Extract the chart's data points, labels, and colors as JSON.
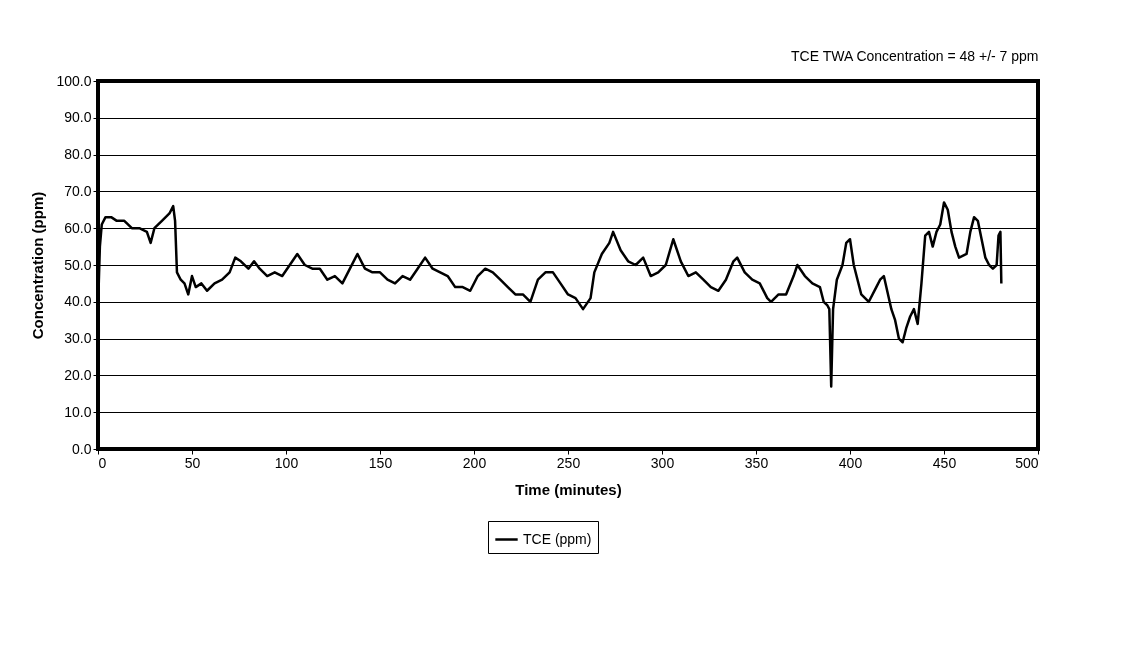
{
  "chart_data": {
    "type": "line",
    "xlabel": "Time (minutes)",
    "ylabel": "Concentration (ppm)",
    "annotations": [
      "TCE TWA Concentration = 48 +/- 7 ppm"
    ],
    "xlim": [
      0,
      500
    ],
    "xticks": [
      0,
      50,
      100,
      150,
      200,
      250,
      300,
      350,
      400,
      450,
      500
    ],
    "ylim": [
      0,
      100
    ],
    "yticks": [
      {
        "value": 0,
        "label": "0.0"
      },
      {
        "value": 10,
        "label": "10.0"
      },
      {
        "value": 20,
        "label": "20.0"
      },
      {
        "value": 30,
        "label": "30.0"
      },
      {
        "value": 40,
        "label": "40.0"
      },
      {
        "value": 50,
        "label": "50.0"
      },
      {
        "value": 60,
        "label": "60.0"
      },
      {
        "value": 70,
        "label": "70.0"
      },
      {
        "value": 80,
        "label": "80.0"
      },
      {
        "value": 90,
        "label": "90.0"
      },
      {
        "value": 100,
        "label": "100.0"
      }
    ],
    "grid": "y",
    "legend": "bottom",
    "marker": "none",
    "line_style": "solid",
    "series": [
      {
        "name": "TCE (ppm)",
        "color": "#000000",
        "x": [
          0,
          1,
          2,
          4,
          7,
          10,
          14,
          18,
          22,
          26,
          28,
          30,
          34,
          38,
          40,
          41,
          42,
          44,
          46,
          48,
          50,
          52,
          55,
          58,
          62,
          66,
          70,
          73,
          76,
          80,
          83,
          86,
          90,
          94,
          98,
          102,
          106,
          110,
          114,
          118,
          122,
          126,
          130,
          134,
          138,
          142,
          146,
          150,
          154,
          158,
          162,
          166,
          170,
          174,
          178,
          182,
          186,
          190,
          194,
          198,
          202,
          206,
          210,
          214,
          218,
          222,
          226,
          230,
          234,
          238,
          242,
          246,
          250,
          254,
          258,
          262,
          264,
          268,
          272,
          274,
          278,
          282,
          286,
          290,
          294,
          298,
          302,
          306,
          310,
          314,
          318,
          322,
          326,
          330,
          334,
          338,
          340,
          344,
          348,
          352,
          356,
          358,
          362,
          366,
          370,
          372,
          376,
          380,
          384,
          386,
          388,
          389,
          390,
          391,
          393,
          396,
          398,
          400,
          402,
          406,
          410,
          414,
          416,
          418,
          422,
          424,
          426,
          428,
          430,
          432,
          434,
          436,
          438,
          440,
          442,
          444,
          446,
          448,
          450,
          452,
          454,
          456,
          458,
          462,
          464,
          466,
          468,
          470,
          472,
          474,
          476,
          478,
          479,
          480,
          480.5
        ],
        "values": [
          38,
          55,
          61,
          63,
          63,
          62,
          62,
          60,
          60,
          59,
          56,
          60,
          62,
          64,
          66,
          62,
          48,
          46,
          45,
          42,
          47,
          44,
          45,
          43,
          45,
          46,
          48,
          52,
          51,
          49,
          51,
          49,
          47,
          48,
          47,
          50,
          53,
          50,
          49,
          49,
          46,
          47,
          45,
          49,
          53,
          49,
          48,
          48,
          46,
          45,
          47,
          46,
          49,
          52,
          49,
          48,
          47,
          44,
          44,
          43,
          47,
          49,
          48,
          46,
          44,
          42,
          42,
          40,
          46,
          48,
          48,
          45,
          42,
          41,
          38,
          41,
          48,
          53,
          56,
          59,
          54,
          51,
          50,
          52,
          47,
          48,
          50,
          57,
          51,
          47,
          48,
          46,
          44,
          43,
          46,
          51,
          52,
          48,
          46,
          45,
          41,
          40,
          42,
          42,
          47,
          50,
          47,
          45,
          44,
          40,
          39,
          38,
          17,
          38,
          46,
          50,
          56,
          57,
          50,
          42,
          40,
          44,
          46,
          47,
          38,
          35,
          30,
          29,
          33,
          36,
          38,
          34,
          45,
          58,
          59,
          55,
          59,
          61,
          67,
          65,
          59,
          55,
          52,
          53,
          59,
          63,
          62,
          57,
          52,
          50,
          49,
          50,
          58,
          59,
          45
        ]
      }
    ]
  }
}
